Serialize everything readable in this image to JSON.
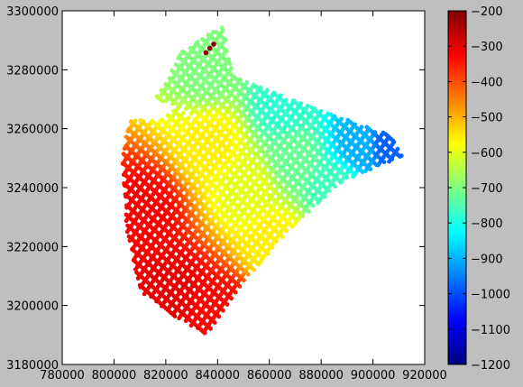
{
  "chart_data": {
    "type": "scatter",
    "title": "",
    "xlabel": "",
    "ylabel": "",
    "xlim": [
      780000,
      920000
    ],
    "ylim": [
      3180000,
      3300000
    ],
    "x_ticks": [
      780000,
      800000,
      820000,
      840000,
      860000,
      880000,
      900000,
      920000
    ],
    "x_tick_labels": [
      "780000",
      "800000",
      "820000",
      "840000",
      "860000",
      "880000",
      "900000",
      "920000"
    ],
    "y_ticks": [
      3180000,
      3200000,
      3220000,
      3240000,
      3260000,
      3280000,
      3300000
    ],
    "y_tick_labels": [
      "3180000",
      "3200000",
      "3220000",
      "3240000",
      "3260000",
      "3280000",
      "3300000"
    ],
    "grid": false,
    "colormap": "jet",
    "colorbar": {
      "vmin": -1200,
      "vmax": -200,
      "ticks": [
        -1200,
        -1100,
        -1000,
        -900,
        -800,
        -700,
        -600,
        -500,
        -400,
        -300,
        -200
      ],
      "tick_labels": [
        "−1200",
        "−1100",
        "−1000",
        "−900",
        "−800",
        "−700",
        "−600",
        "−500",
        "−400",
        "−300",
        "−200"
      ]
    },
    "coverage_polygon": [
      [
        826000,
        3286000
      ],
      [
        842000,
        3295000
      ],
      [
        846000,
        3278000
      ],
      [
        868000,
        3270000
      ],
      [
        906000,
        3258000
      ],
      [
        912000,
        3251000
      ],
      [
        888000,
        3242000
      ],
      [
        868000,
        3226000
      ],
      [
        852000,
        3210000
      ],
      [
        836000,
        3190000
      ],
      [
        824000,
        3196000
      ],
      [
        810000,
        3205000
      ],
      [
        805000,
        3225000
      ],
      [
        803000,
        3250000
      ],
      [
        806000,
        3263000
      ],
      [
        818000,
        3263000
      ],
      [
        826000,
        3268000
      ],
      [
        834000,
        3260000
      ],
      [
        824000,
        3268000
      ],
      [
        816000,
        3270000
      ]
    ],
    "value_field": {
      "description": "",
      "anchors": [
        {
          "x": 812000,
          "y": 3232000,
          "value": -320
        },
        {
          "x": 822000,
          "y": 3205000,
          "value": -300
        },
        {
          "x": 840000,
          "y": 3198000,
          "value": -330
        },
        {
          "x": 838000,
          "y": 3255000,
          "value": -560
        },
        {
          "x": 852000,
          "y": 3240000,
          "value": -600
        },
        {
          "x": 862000,
          "y": 3222000,
          "value": -560
        },
        {
          "x": 870000,
          "y": 3250000,
          "value": -720
        },
        {
          "x": 885000,
          "y": 3240000,
          "value": -760
        },
        {
          "x": 895000,
          "y": 3255000,
          "value": -900
        },
        {
          "x": 906000,
          "y": 3255000,
          "value": -980
        },
        {
          "x": 836000,
          "y": 3280000,
          "value": -700
        },
        {
          "x": 865000,
          "y": 3268000,
          "value": -780
        }
      ]
    },
    "outlier_points": [
      {
        "x": 835500,
        "y": 3285800,
        "value": -210
      },
      {
        "x": 837000,
        "y": 3287300,
        "value": -210
      },
      {
        "x": 838500,
        "y": 3288700,
        "value": -210
      }
    ]
  }
}
